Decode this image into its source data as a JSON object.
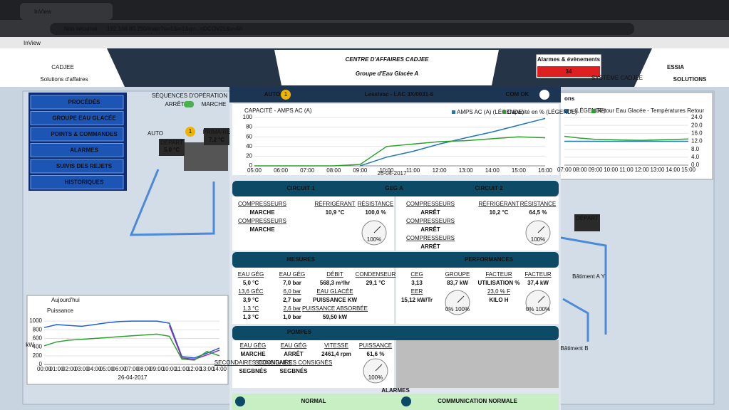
{
  "browser": {
    "tab": "InView",
    "security": "Non sécurisé",
    "url": "192.168.80.250/main?o=1&i=1&q=...=DCOV01&v=66",
    "app": "InView"
  },
  "header": {
    "logo": "CADJEE",
    "logo_sub": "Solutions d'affaires",
    "title": "CENTRE D'AFFAIRES CADJEE",
    "subtitle": "Groupe d'Eau Glacée A",
    "alarms_label": "Alarmes & évènements",
    "alarms_count": "34",
    "system": "SYSTÈME CADJEE",
    "brand": "ESSIA",
    "brand_sub": "SOLUTIONS"
  },
  "menu": [
    "PROCÉDÉS",
    "GROUPE EAU GLACÉE",
    "POINTS & COMMANDES",
    "ALARMES",
    "SUIVIS DES REJETS",
    "HISTORIQUES"
  ],
  "sequence": {
    "title": "SÉQUENCES D'OPÉRATION",
    "off": "ARRÊT",
    "on": "MARCHE"
  },
  "plant": {
    "auto": "AUTO",
    "badge": "1",
    "depart": "DÉPART",
    "depart_value": "5.0 °C",
    "primaire": "PRIMAIRE",
    "primaire_value": "7.2 °C",
    "depart2": "DÉPART",
    "building_a": "Bâtiment A Y",
    "building_b": "Bâtiment B"
  },
  "power_panel": {
    "period": "Aujourd'hui",
    "title": "Puissance",
    "unit": "kW",
    "date": "26-04-2017",
    "chart": {
      "type": "line",
      "x": [
        "00:00",
        "01:00",
        "02:00",
        "03:00",
        "04:00",
        "05:00",
        "06:00",
        "07:00",
        "08:00",
        "09:00",
        "10:00",
        "11:00",
        "12:00",
        "13:00",
        "14:00"
      ],
      "series": [
        {
          "color": "#1f5fd6",
          "values": [
            850,
            920,
            900,
            880,
            920,
            960,
            990,
            1000,
            1000,
            1000,
            950,
            180,
            150,
            260,
            380
          ]
        },
        {
          "color": "#8e2bb0",
          "values": [
            null,
            null,
            null,
            null,
            null,
            null,
            null,
            null,
            null,
            null,
            900,
            150,
            120,
            220,
            330
          ]
        },
        {
          "color": "#2ca02c",
          "values": [
            430,
            520,
            560,
            580,
            600,
            620,
            640,
            660,
            680,
            700,
            650,
            120,
            100,
            300,
            200
          ]
        }
      ],
      "ylim": [
        0,
        1100
      ],
      "yticks": [
        0,
        200,
        400,
        600,
        800,
        1000
      ]
    }
  },
  "temp_panel": {
    "title": "ons",
    "chart": {
      "type": "line",
      "x": [
        "07:00",
        "08:00",
        "09:00",
        "10:00",
        "11:00",
        "12:00",
        "13:00",
        "14:00",
        "15:00"
      ],
      "series": [
        {
          "name": "s (LÉGENDE)",
          "color": "#1f77b4",
          "values": [
            12,
            12,
            12,
            12,
            12,
            12,
            12,
            12,
            12
          ]
        },
        {
          "name": "Retour Eau Glacée - Températures Retour",
          "color": "#2ca02c",
          "values": [
            14.5,
            13.6,
            13,
            12.8,
            12.6,
            12.5,
            12.7,
            12.9,
            13.2
          ]
        }
      ],
      "ylim": [
        0,
        24
      ],
      "yticks": [
        {
          "value": 0,
          "label": "0.0"
        },
        {
          "value": 4,
          "label": "4.0"
        },
        {
          "value": 8,
          "label": "8.0"
        },
        {
          "value": 12,
          "label": "12.0"
        },
        {
          "value": 16,
          "label": "16.0"
        },
        {
          "value": 20,
          "label": "20.0"
        },
        {
          "value": 24,
          "label": "24.0"
        }
      ]
    }
  },
  "modal": {
    "auto": "AUTO",
    "badge": "1",
    "title": "Lessivac - LAC 3X/0031-6",
    "com": "COM OK",
    "chart": {
      "type": "line",
      "title": "CAPACITÉ - AMPS AC (A)",
      "date": "26-04-2017",
      "x": [
        "05:00",
        "06:00",
        "07:00",
        "08:00",
        "09:00",
        "10:00",
        "11:00",
        "12:00",
        "13:00",
        "14:00",
        "15:00",
        "16:00"
      ],
      "series": [
        {
          "name": "AMPS AC (A) (LÉGENDE)",
          "color": "#1f77b4",
          "values": [
            null,
            null,
            null,
            null,
            0,
            18,
            30,
            45,
            58,
            70,
            84,
            98
          ]
        },
        {
          "name": "Capacité en % (LÉGENDE)",
          "color": "#2ca02c",
          "values": [
            0,
            0,
            0,
            0,
            3,
            40,
            45,
            50,
            52,
            56,
            60,
            58
          ]
        }
      ],
      "ylim": [
        0,
        100
      ],
      "yticks": [
        0,
        20,
        40,
        60,
        80,
        100
      ]
    },
    "circuit": {
      "left": "CIRCUIT 1",
      "middle": "GEG A",
      "right": "CIRCUIT 2",
      "c1": [
        [
          "COMPRESSEURS",
          "MARCHE",
          "COMPRESSEURS",
          "MARCHE"
        ],
        [
          "RÉFRIGÉRANT",
          "10,9 °C"
        ],
        [
          "RÉSISTANCE",
          "100,0 %"
        ]
      ],
      "c2": [
        [
          "COMPRESSEURS",
          "ARRÊT",
          "COMPRESSEURS",
          "ARRÊT",
          "COMPRESSEURS",
          "ARRÊT"
        ],
        [
          "RÉFRIGÉRANT",
          "10,2 °C"
        ],
        [
          "RÉSISTANCE",
          "64,5 %"
        ]
      ],
      "gauges": [
        "100%",
        "100%"
      ]
    },
    "measures": {
      "left": "MESURES",
      "right": "PERFORMANCES",
      "m": [
        [
          "EAU GÉG",
          "5,0 °C",
          "13,6 GÉC",
          "3,9 °C",
          "1,3 °C",
          "1,3 °C"
        ],
        [
          "EAU GÉG",
          "7,0 bar",
          "6,0 bar",
          "2,7 bar",
          "2,6 bar",
          "1,0 bar"
        ],
        [
          "DÉBIT",
          "568,3 m³/hr",
          "EAU GLACÉE",
          "PUISSANCE KW",
          "PUISSANCE ABSORBÉE",
          "59,50 kW"
        ],
        [
          "CONDENSEUR",
          "29,1 °C"
        ]
      ],
      "p": [
        [
          "CEG",
          "3,13",
          "EER",
          "15,12 kW/Tr"
        ],
        [
          "GROUPE",
          "83,7 kW"
        ],
        [
          "FACTEUR",
          "UTILISATION %",
          "23,0 % F",
          "KILO H"
        ],
        [
          "FACTEUR",
          "37,4 kW"
        ]
      ],
      "gauges": [
        "0% 100%",
        "0% 100%"
      ]
    },
    "pumps": {
      "title": "POMPES",
      "cols": [
        [
          "EAU GÉG",
          "MARCHE",
          "SECONDAIRES CONSIGNÉS",
          "SEGBNÉS"
        ],
        [
          "EAU GÉG",
          "ARRÊT",
          "SECONDAIRES CONSIGNÉS",
          "SEGBNÉS"
        ],
        [
          "VITESSE",
          "2461,4 rpm"
        ],
        [
          "PUISSANCE",
          "61,6 %"
        ]
      ],
      "gauge": "100%"
    },
    "alarms": {
      "title": "ALARMES",
      "status": "NORMAL",
      "communication": "COMMUNICATION NORMALE"
    }
  }
}
